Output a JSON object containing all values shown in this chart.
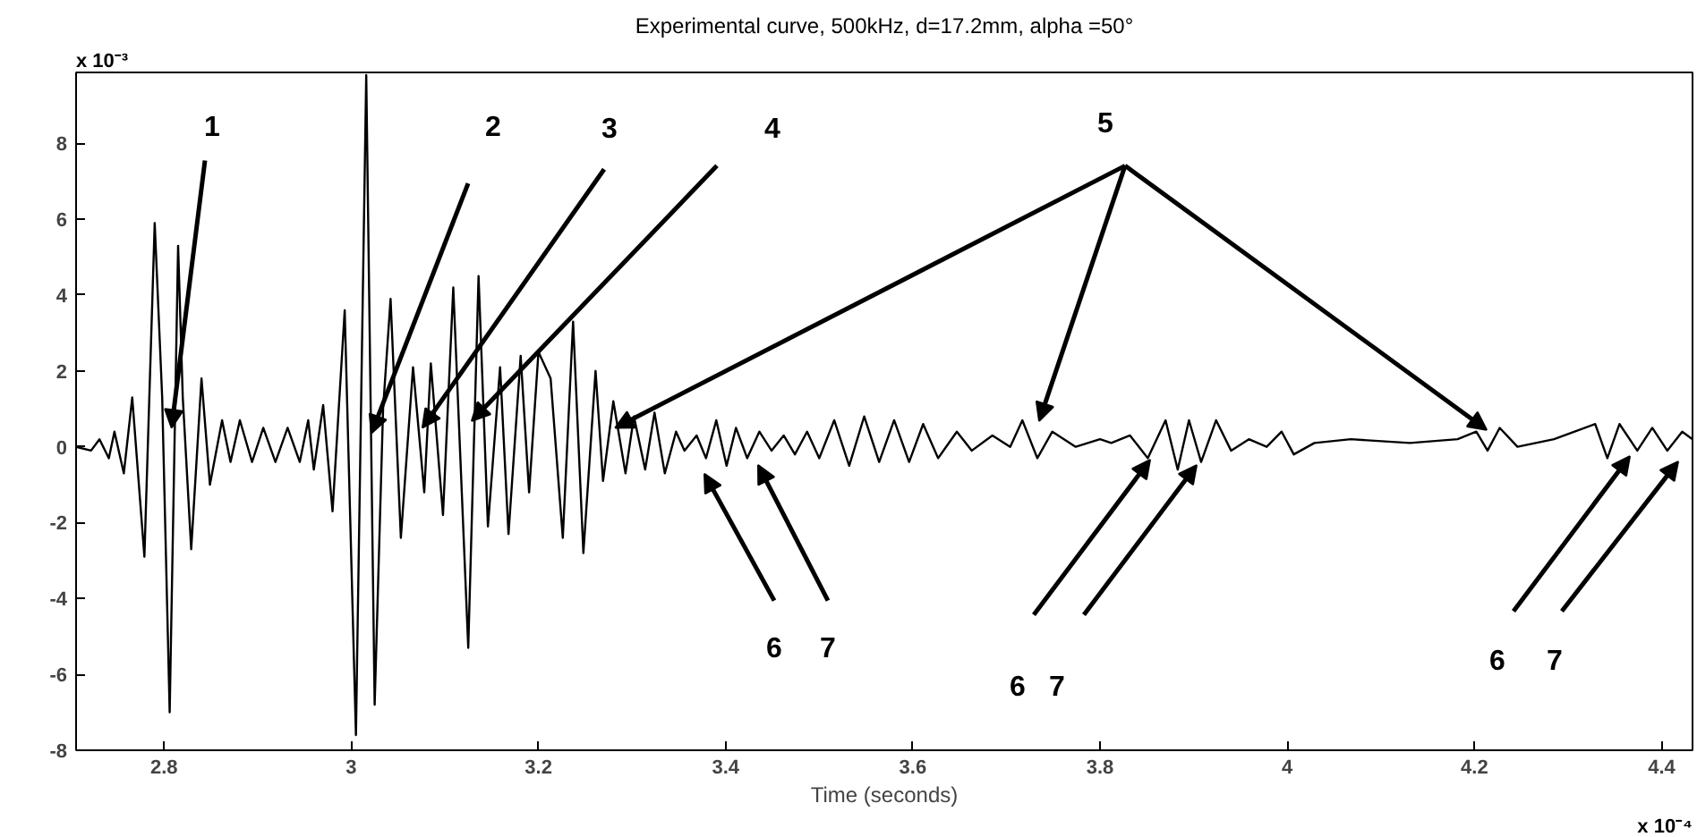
{
  "chart_data": {
    "type": "line",
    "title": "Experimental curve, 500kHz, d=17.2mm, alpha =50°",
    "xlabel": "Time (seconds)",
    "color": "#000000",
    "x": [
      2.706,
      2.722,
      2.731,
      2.741,
      2.747,
      2.757,
      2.766,
      2.779,
      2.79,
      2.798,
      2.806,
      2.815,
      2.82,
      2.829,
      2.84,
      2.849,
      2.862,
      2.871,
      2.881,
      2.894,
      2.906,
      2.919,
      2.932,
      2.945,
      2.954,
      2.96,
      2.97,
      2.98,
      2.993,
      3.005,
      3.016,
      3.025,
      3.034,
      3.042,
      3.053,
      3.066,
      3.078,
      3.085,
      3.098,
      3.109,
      3.125,
      3.136,
      3.146,
      3.159,
      3.168,
      3.181,
      3.19,
      3.2,
      3.213,
      3.226,
      3.237,
      3.248,
      3.261,
      3.269,
      3.28,
      3.293,
      3.302,
      3.314,
      3.324,
      3.335,
      3.347,
      3.356,
      3.369,
      3.379,
      3.39,
      3.401,
      3.411,
      3.423,
      3.436,
      3.449,
      3.462,
      3.474,
      3.487,
      3.5,
      3.516,
      3.532,
      3.548,
      3.564,
      3.58,
      3.596,
      3.611,
      3.627,
      3.647,
      3.663,
      3.685,
      3.704,
      3.717,
      3.733,
      3.749,
      3.774,
      3.8,
      3.812,
      3.832,
      3.851,
      3.87,
      3.883,
      3.895,
      3.908,
      3.924,
      3.94,
      3.959,
      3.978,
      3.994,
      4.007,
      4.029,
      4.068,
      4.131,
      4.182,
      4.202,
      4.214,
      4.227,
      4.246,
      4.285,
      4.329,
      4.342,
      4.355,
      4.374,
      4.39,
      4.406,
      4.422,
      4.433
    ],
    "values": [
      0,
      -0.1,
      0.2,
      -0.3,
      0.4,
      -0.7,
      1.3,
      -2.9,
      5.9,
      1.3,
      -7.0,
      5.3,
      1.3,
      -2.7,
      1.8,
      -1.0,
      0.7,
      -0.4,
      0.7,
      -0.4,
      0.5,
      -0.4,
      0.5,
      -0.4,
      0.7,
      -0.6,
      1.1,
      -1.7,
      3.6,
      -7.6,
      9.8,
      -6.8,
      1.0,
      3.9,
      -2.4,
      2.1,
      -1.2,
      2.2,
      -1.8,
      4.2,
      -5.3,
      4.5,
      -2.1,
      2.1,
      -2.3,
      2.4,
      -1.2,
      2.5,
      1.8,
      -2.4,
      3.3,
      -2.8,
      2.0,
      -0.9,
      1.2,
      -0.7,
      0.8,
      -0.6,
      0.9,
      -0.7,
      0.4,
      -0.1,
      0.3,
      -0.3,
      0.7,
      -0.5,
      0.5,
      -0.3,
      0.4,
      -0.1,
      0.3,
      -0.2,
      0.4,
      -0.3,
      0.7,
      -0.5,
      0.8,
      -0.4,
      0.7,
      -0.4,
      0.6,
      -0.3,
      0.4,
      -0.1,
      0.3,
      0,
      0.7,
      -0.3,
      0.4,
      0,
      0.2,
      0.1,
      0.3,
      -0.3,
      0.7,
      -0.6,
      0.7,
      -0.4,
      0.7,
      -0.1,
      0.2,
      0,
      0.4,
      -0.2,
      0.1,
      0.2,
      0.1,
      0.2,
      0.4,
      -0.1,
      0.5,
      0,
      0.2,
      0.6,
      -0.3,
      0.6,
      -0.1,
      0.5,
      -0.1,
      0.4,
      0.2
    ],
    "xlim": [
      2.706,
      4.433
    ],
    "ylim": [
      -8,
      9.87
    ],
    "xticks": [
      2.8,
      3,
      3.2,
      3.4,
      3.6,
      3.8,
      4,
      4.2,
      4.4
    ],
    "yticks": [
      -8,
      -6,
      -4,
      -2,
      0,
      2,
      4,
      6,
      8
    ],
    "annotations": [
      {
        "text": "1",
        "x": 2.808,
        "y": 0.5
      },
      "2",
      {
        "text": "3",
        "x": 3.076,
        "y": 0.5
      },
      "4",
      {
        "text": "5",
        "x": 3.282,
        "y": 0.5
      },
      "6",
      "7",
      "6",
      "7",
      "6",
      "7",
      "x 10⁻³",
      "x 10⁻⁴"
    ]
  }
}
